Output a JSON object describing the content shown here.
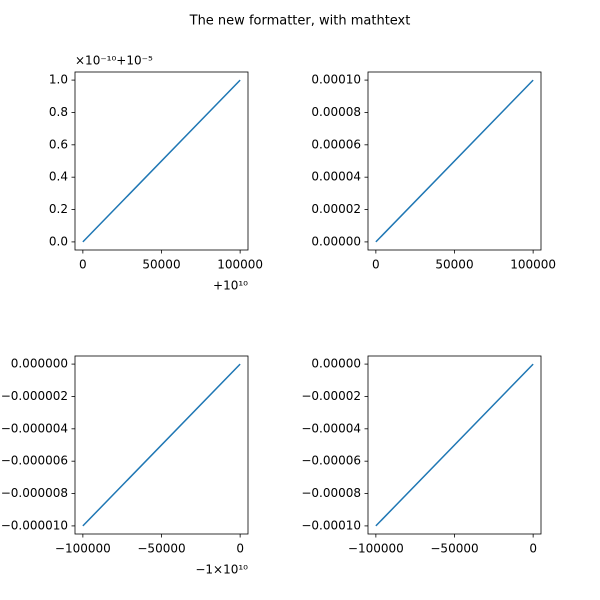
{
  "title": "The new formatter, with mathtext",
  "chart_data": [
    {
      "type": "line",
      "x": [
        0,
        100000
      ],
      "values": [
        0,
        1
      ],
      "color": "#1f77b4",
      "xlim": [
        -5000,
        105000
      ],
      "ylim": [
        -0.05,
        1.05
      ],
      "xticks": [
        0,
        50000,
        100000
      ],
      "yticks": [
        {
          "value": 0,
          "label": "0.0"
        },
        {
          "value": 0.2,
          "label": "0.2"
        },
        {
          "value": 0.4,
          "label": "0.4"
        },
        {
          "value": 0.6,
          "label": "0.6"
        },
        {
          "value": 0.8,
          "label": "0.8"
        },
        {
          "value": 1,
          "label": "1.0"
        }
      ],
      "x_offset": "+10¹⁰",
      "y_offset": "×10⁻¹⁰+10⁻⁵"
    },
    {
      "type": "line",
      "x": [
        0,
        100000
      ],
      "values": [
        0,
        0.0001
      ],
      "color": "#1f77b4",
      "xlim": [
        -5000,
        105000
      ],
      "ylim": [
        -5e-06,
        0.000105
      ],
      "xticks": [
        0,
        50000,
        100000
      ],
      "yticks": [
        {
          "value": 0,
          "label": "0.00000"
        },
        {
          "value": 2e-05,
          "label": "0.00002"
        },
        {
          "value": 4e-05,
          "label": "0.00004"
        },
        {
          "value": 6e-05,
          "label": "0.00006"
        },
        {
          "value": 8e-05,
          "label": "0.00008"
        },
        {
          "value": 0.0001,
          "label": "0.00010"
        }
      ]
    },
    {
      "type": "line",
      "x": [
        -100000,
        0
      ],
      "values": [
        -1e-05,
        0
      ],
      "color": "#1f77b4",
      "xlim": [
        -105000,
        5000
      ],
      "ylim": [
        -1.05e-05,
        5e-07
      ],
      "xticks": [
        {
          "value": -100000,
          "label": "−100000"
        },
        {
          "value": -50000,
          "label": "−50000"
        },
        0
      ],
      "yticks": [
        {
          "value": -1e-05,
          "label": "−0.000010"
        },
        {
          "value": -8e-06,
          "label": "−0.000008"
        },
        {
          "value": -6e-06,
          "label": "−0.000006"
        },
        {
          "value": -4e-06,
          "label": "−0.000004"
        },
        {
          "value": -2e-06,
          "label": "−0.000002"
        },
        {
          "value": 0,
          "label": "0.000000"
        }
      ],
      "x_offset": "−1×10¹⁰"
    },
    {
      "type": "line",
      "x": [
        -100000,
        0
      ],
      "values": [
        -0.0001,
        0
      ],
      "color": "#1f77b4",
      "xlim": [
        -105000,
        5000
      ],
      "ylim": [
        -0.000105,
        5e-06
      ],
      "xticks": [
        {
          "value": -100000,
          "label": "−100000"
        },
        {
          "value": -50000,
          "label": "−50000"
        },
        0
      ],
      "yticks": [
        {
          "value": -0.0001,
          "label": "−0.00010"
        },
        {
          "value": -8e-05,
          "label": "−0.00008"
        },
        {
          "value": -6e-05,
          "label": "−0.00006"
        },
        {
          "value": -4e-05,
          "label": "−0.00004"
        },
        {
          "value": -2e-05,
          "label": "−0.00002"
        },
        {
          "value": 0,
          "label": "0.00000"
        }
      ]
    }
  ]
}
